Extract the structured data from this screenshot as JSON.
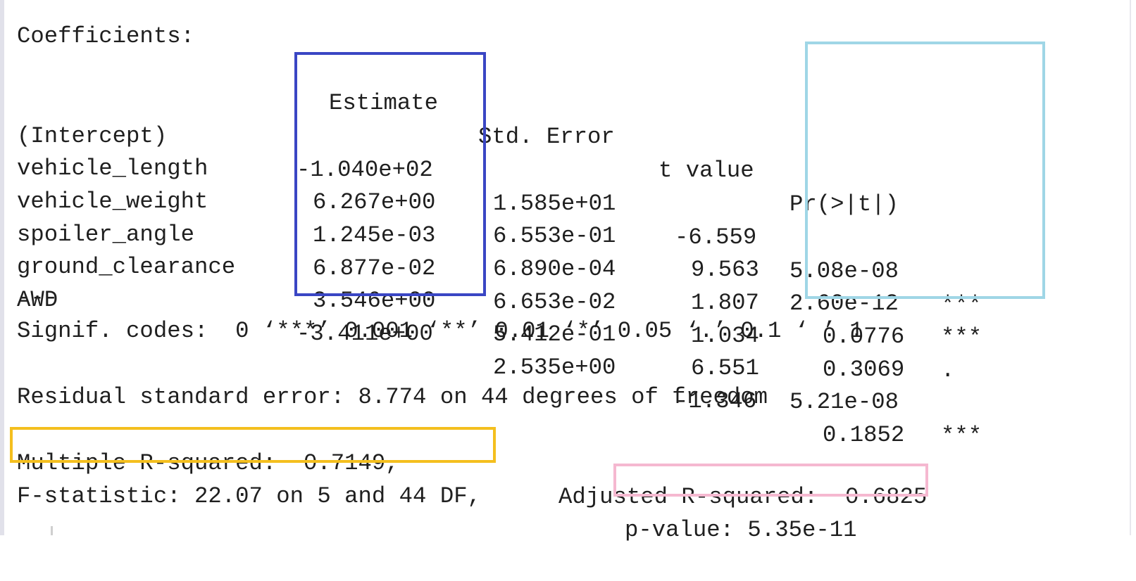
{
  "output": {
    "header": "Coefficients:",
    "columns": {
      "estimate": "Estimate",
      "std_error": "Std. Error",
      "t_value": "t value",
      "p_value": "Pr(>|t|)"
    },
    "rows": [
      {
        "term": "(Intercept)",
        "estimate": "-1.040e+02",
        "std_error": "1.585e+01",
        "t_value": "-6.559",
        "p_value": "5.08e-08",
        "signif": "***"
      },
      {
        "term": "vehicle_length",
        "estimate": "6.267e+00",
        "std_error": "6.553e-01",
        "t_value": "9.563",
        "p_value": "2.60e-12",
        "signif": "***"
      },
      {
        "term": "vehicle_weight",
        "estimate": "1.245e-03",
        "std_error": "6.890e-04",
        "t_value": "1.807",
        "p_value": "0.0776",
        "signif": "."
      },
      {
        "term": "spoiler_angle",
        "estimate": "6.877e-02",
        "std_error": "6.653e-02",
        "t_value": "1.034",
        "p_value": "0.3069",
        "signif": ""
      },
      {
        "term": "ground_clearance",
        "estimate": "3.546e+00",
        "std_error": "5.412e-01",
        "t_value": "6.551",
        "p_value": "5.21e-08",
        "signif": "***"
      },
      {
        "term": "AWD",
        "estimate": "-3.411e+00",
        "std_error": "2.535e+00",
        "t_value": "-1.346",
        "p_value": "0.1852",
        "signif": ""
      }
    ],
    "separator": "---",
    "signif_codes": "Signif. codes:  0 ‘***’ 0.001 ‘**’ 0.01 ‘*’ 0.05 ‘.’ 0.1 ‘ ’ 1",
    "residual_se": "Residual standard error: 8.774 on 44 degrees of freedom",
    "multiple_r2": "Multiple R-squared:  0.7149,",
    "adjusted_r2": "Adjusted R-squared:  0.6825",
    "f_statistic": "F-statistic: 22.07 on 5 and 44 DF,",
    "p_value_overall": "p-value: 5.35e-11"
  },
  "colors": {
    "estimate_box": "#3a46c4",
    "pvalue_box": "#9fd6e6",
    "r_squared_box": "#f4bf1e",
    "overall_pvalue_box": "#f5b8d0",
    "text": "#1f1f1f"
  }
}
